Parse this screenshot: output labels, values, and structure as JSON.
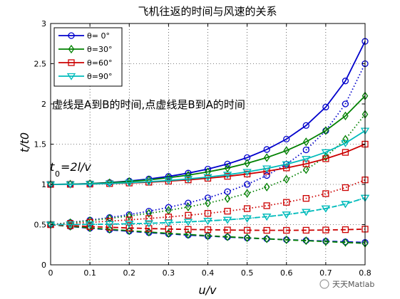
{
  "chart_data": {
    "type": "line",
    "title": "飞机往返的时间与风速的关系",
    "xlabel": "u/v",
    "ylabel": "t/t0",
    "xlim": [
      0,
      0.8
    ],
    "ylim": [
      0,
      3
    ],
    "xticks": [
      "0",
      "0.1",
      "0.2",
      "0.3",
      "0.4",
      "0.5",
      "0.6",
      "0.7",
      "0.8"
    ],
    "yticks": [
      "0",
      "0.5",
      "1",
      "1.5",
      "2",
      "2.5",
      "3"
    ],
    "grid": true,
    "legend_position": "top-left",
    "x": [
      0,
      0.05,
      0.1,
      0.15,
      0.2,
      0.25,
      0.3,
      0.35,
      0.4,
      0.45,
      0.5,
      0.55,
      0.6,
      0.65,
      0.7,
      0.75,
      0.8
    ],
    "series": [
      {
        "name": "θ= 0°",
        "color": "#0000cc",
        "marker": "circle",
        "total": [
          1,
          1.003,
          1.01,
          1.023,
          1.042,
          1.067,
          1.099,
          1.14,
          1.19,
          1.253,
          1.333,
          1.434,
          1.563,
          1.732,
          1.961,
          2.286,
          2.778
        ],
        "a_to_b": [
          0.5,
          0.476,
          0.455,
          0.435,
          0.417,
          0.4,
          0.385,
          0.37,
          0.357,
          0.345,
          0.333,
          0.323,
          0.313,
          0.303,
          0.294,
          0.286,
          0.278
        ],
        "b_to_a": [
          0.5,
          0.526,
          0.556,
          0.588,
          0.625,
          0.667,
          0.714,
          0.769,
          0.833,
          0.909,
          1.0,
          1.111,
          1.25,
          1.429,
          1.667,
          2.0,
          2.5
        ]
      },
      {
        "name": "θ=30°",
        "color": "#008000",
        "marker": "diamond",
        "total": [
          1,
          1.003,
          1.009,
          1.02,
          1.036,
          1.056,
          1.083,
          1.115,
          1.155,
          1.203,
          1.262,
          1.333,
          1.42,
          1.529,
          1.668,
          1.851,
          2.1
        ],
        "a_to_b": [
          0.5,
          0.479,
          0.46,
          0.441,
          0.424,
          0.407,
          0.391,
          0.377,
          0.362,
          0.349,
          0.336,
          0.323,
          0.311,
          0.3,
          0.289,
          0.278,
          0.267
        ],
        "b_to_a": [
          0.5,
          0.524,
          0.549,
          0.577,
          0.607,
          0.64,
          0.677,
          0.719,
          0.767,
          0.823,
          0.888,
          0.967,
          1.063,
          1.184,
          1.343,
          1.561,
          1.871
        ]
      },
      {
        "name": "θ=60°",
        "color": "#cc0000",
        "marker": "square",
        "total": [
          1,
          1.001,
          1.004,
          1.01,
          1.017,
          1.027,
          1.04,
          1.056,
          1.076,
          1.1,
          1.129,
          1.163,
          1.205,
          1.256,
          1.319,
          1.398,
          1.5
        ],
        "a_to_b": [
          0.5,
          0.488,
          0.476,
          0.467,
          0.458,
          0.451,
          0.445,
          0.44,
          0.436,
          0.433,
          0.43,
          0.429,
          0.429,
          0.43,
          0.433,
          0.437,
          0.444
        ],
        "b_to_a": [
          0.5,
          0.513,
          0.528,
          0.543,
          0.559,
          0.576,
          0.595,
          0.616,
          0.64,
          0.667,
          0.699,
          0.735,
          0.777,
          0.826,
          0.885,
          0.96,
          1.056
        ]
      },
      {
        "name": "θ=90°",
        "color": "#00bbbb",
        "marker": "triangle-down",
        "total": [
          1,
          1.001,
          1.005,
          1.011,
          1.021,
          1.033,
          1.048,
          1.068,
          1.091,
          1.12,
          1.155,
          1.198,
          1.25,
          1.316,
          1.4,
          1.512,
          1.667
        ],
        "a_to_b": [
          0.5,
          0.501,
          0.503,
          0.506,
          0.51,
          0.516,
          0.524,
          0.534,
          0.546,
          0.56,
          0.577,
          0.599,
          0.625,
          0.658,
          0.7,
          0.756,
          0.833
        ],
        "b_to_a": [
          0.5,
          0.501,
          0.503,
          0.506,
          0.51,
          0.516,
          0.524,
          0.534,
          0.546,
          0.56,
          0.577,
          0.599,
          0.625,
          0.658,
          0.7,
          0.756,
          0.833
        ]
      }
    ],
    "annotations": {
      "dash_note": "虚线是A到B的时间,点虚线是B到A的时间",
      "formula": "t",
      "formula_sub": "0",
      "formula_rest": "=2l/v"
    }
  },
  "watermark": "天天Matlab"
}
